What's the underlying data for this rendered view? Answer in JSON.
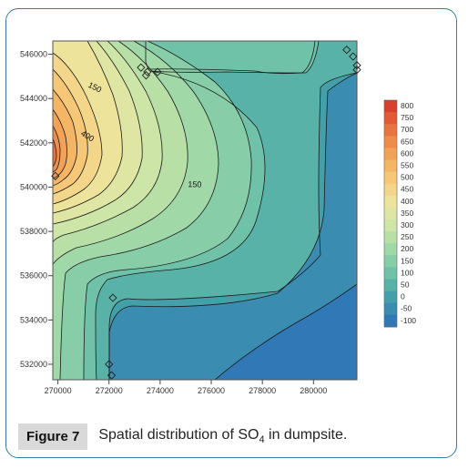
{
  "figure": {
    "label": "Figure 7",
    "caption_prefix": "Spatial distribution of SO",
    "caption_sub": "4",
    "caption_suffix": " in dumpsite."
  },
  "chart_data": {
    "type": "heatmap",
    "subtype": "filled-contour",
    "xlim": [
      269800,
      281700
    ],
    "ylim": [
      531300,
      546600
    ],
    "x_ticks": [
      "270000",
      "272000",
      "274000",
      "276000",
      "278000",
      "280000"
    ],
    "x_tick_values": [
      270000,
      272000,
      274000,
      276000,
      278000,
      280000
    ],
    "y_ticks": [
      "546000",
      "544000",
      "542000",
      "540000",
      "538000",
      "536000",
      "534000",
      "532000"
    ],
    "y_tick_values": [
      546000,
      544000,
      542000,
      540000,
      538000,
      536000,
      534000,
      532000
    ],
    "colorbar": {
      "levels": [
        800,
        750,
        700,
        650,
        600,
        550,
        500,
        450,
        400,
        350,
        300,
        250,
        200,
        150,
        100,
        50,
        0,
        -50,
        -100
      ],
      "labels": [
        "800",
        "750",
        "700",
        "650",
        "600",
        "550",
        "500",
        "450",
        "400",
        "350",
        "300",
        "250",
        "200",
        "150",
        "100",
        "50",
        "0",
        "-50",
        "-100"
      ],
      "colors": [
        "#d7402c",
        "#e05a35",
        "#e8743f",
        "#ef8c49",
        "#f2a257",
        "#f4b565",
        "#f5c776",
        "#f3d689",
        "#ede39a",
        "#dfe6a4",
        "#cde5a6",
        "#b8e0a6",
        "#a0d8a7",
        "#87cea8",
        "#6fc1a7",
        "#58b2a7",
        "#44a0a8",
        "#3a8cb0",
        "#3079b6"
      ]
    },
    "contour_labels": [
      {
        "text": "150",
        "x": 271400,
        "y": 544400,
        "angle": -64
      },
      {
        "text": "400",
        "x": 271100,
        "y": 542200,
        "angle": -58
      },
      {
        "text": "150",
        "x": 275350,
        "y": 540000,
        "angle": -88
      }
    ],
    "sample_points": [
      {
        "x": 269900,
        "y": 540500
      },
      {
        "x": 272150,
        "y": 535000
      },
      {
        "x": 272000,
        "y": 532000
      },
      {
        "x": 272100,
        "y": 531500
      },
      {
        "x": 273250,
        "y": 545400
      },
      {
        "x": 273450,
        "y": 545050
      },
      {
        "x": 273500,
        "y": 545200
      },
      {
        "x": 273900,
        "y": 545200
      },
      {
        "x": 281300,
        "y": 546200
      },
      {
        "x": 281550,
        "y": 545900
      },
      {
        "x": 281700,
        "y": 545500
      },
      {
        "x": 281700,
        "y": 545300
      }
    ]
  }
}
